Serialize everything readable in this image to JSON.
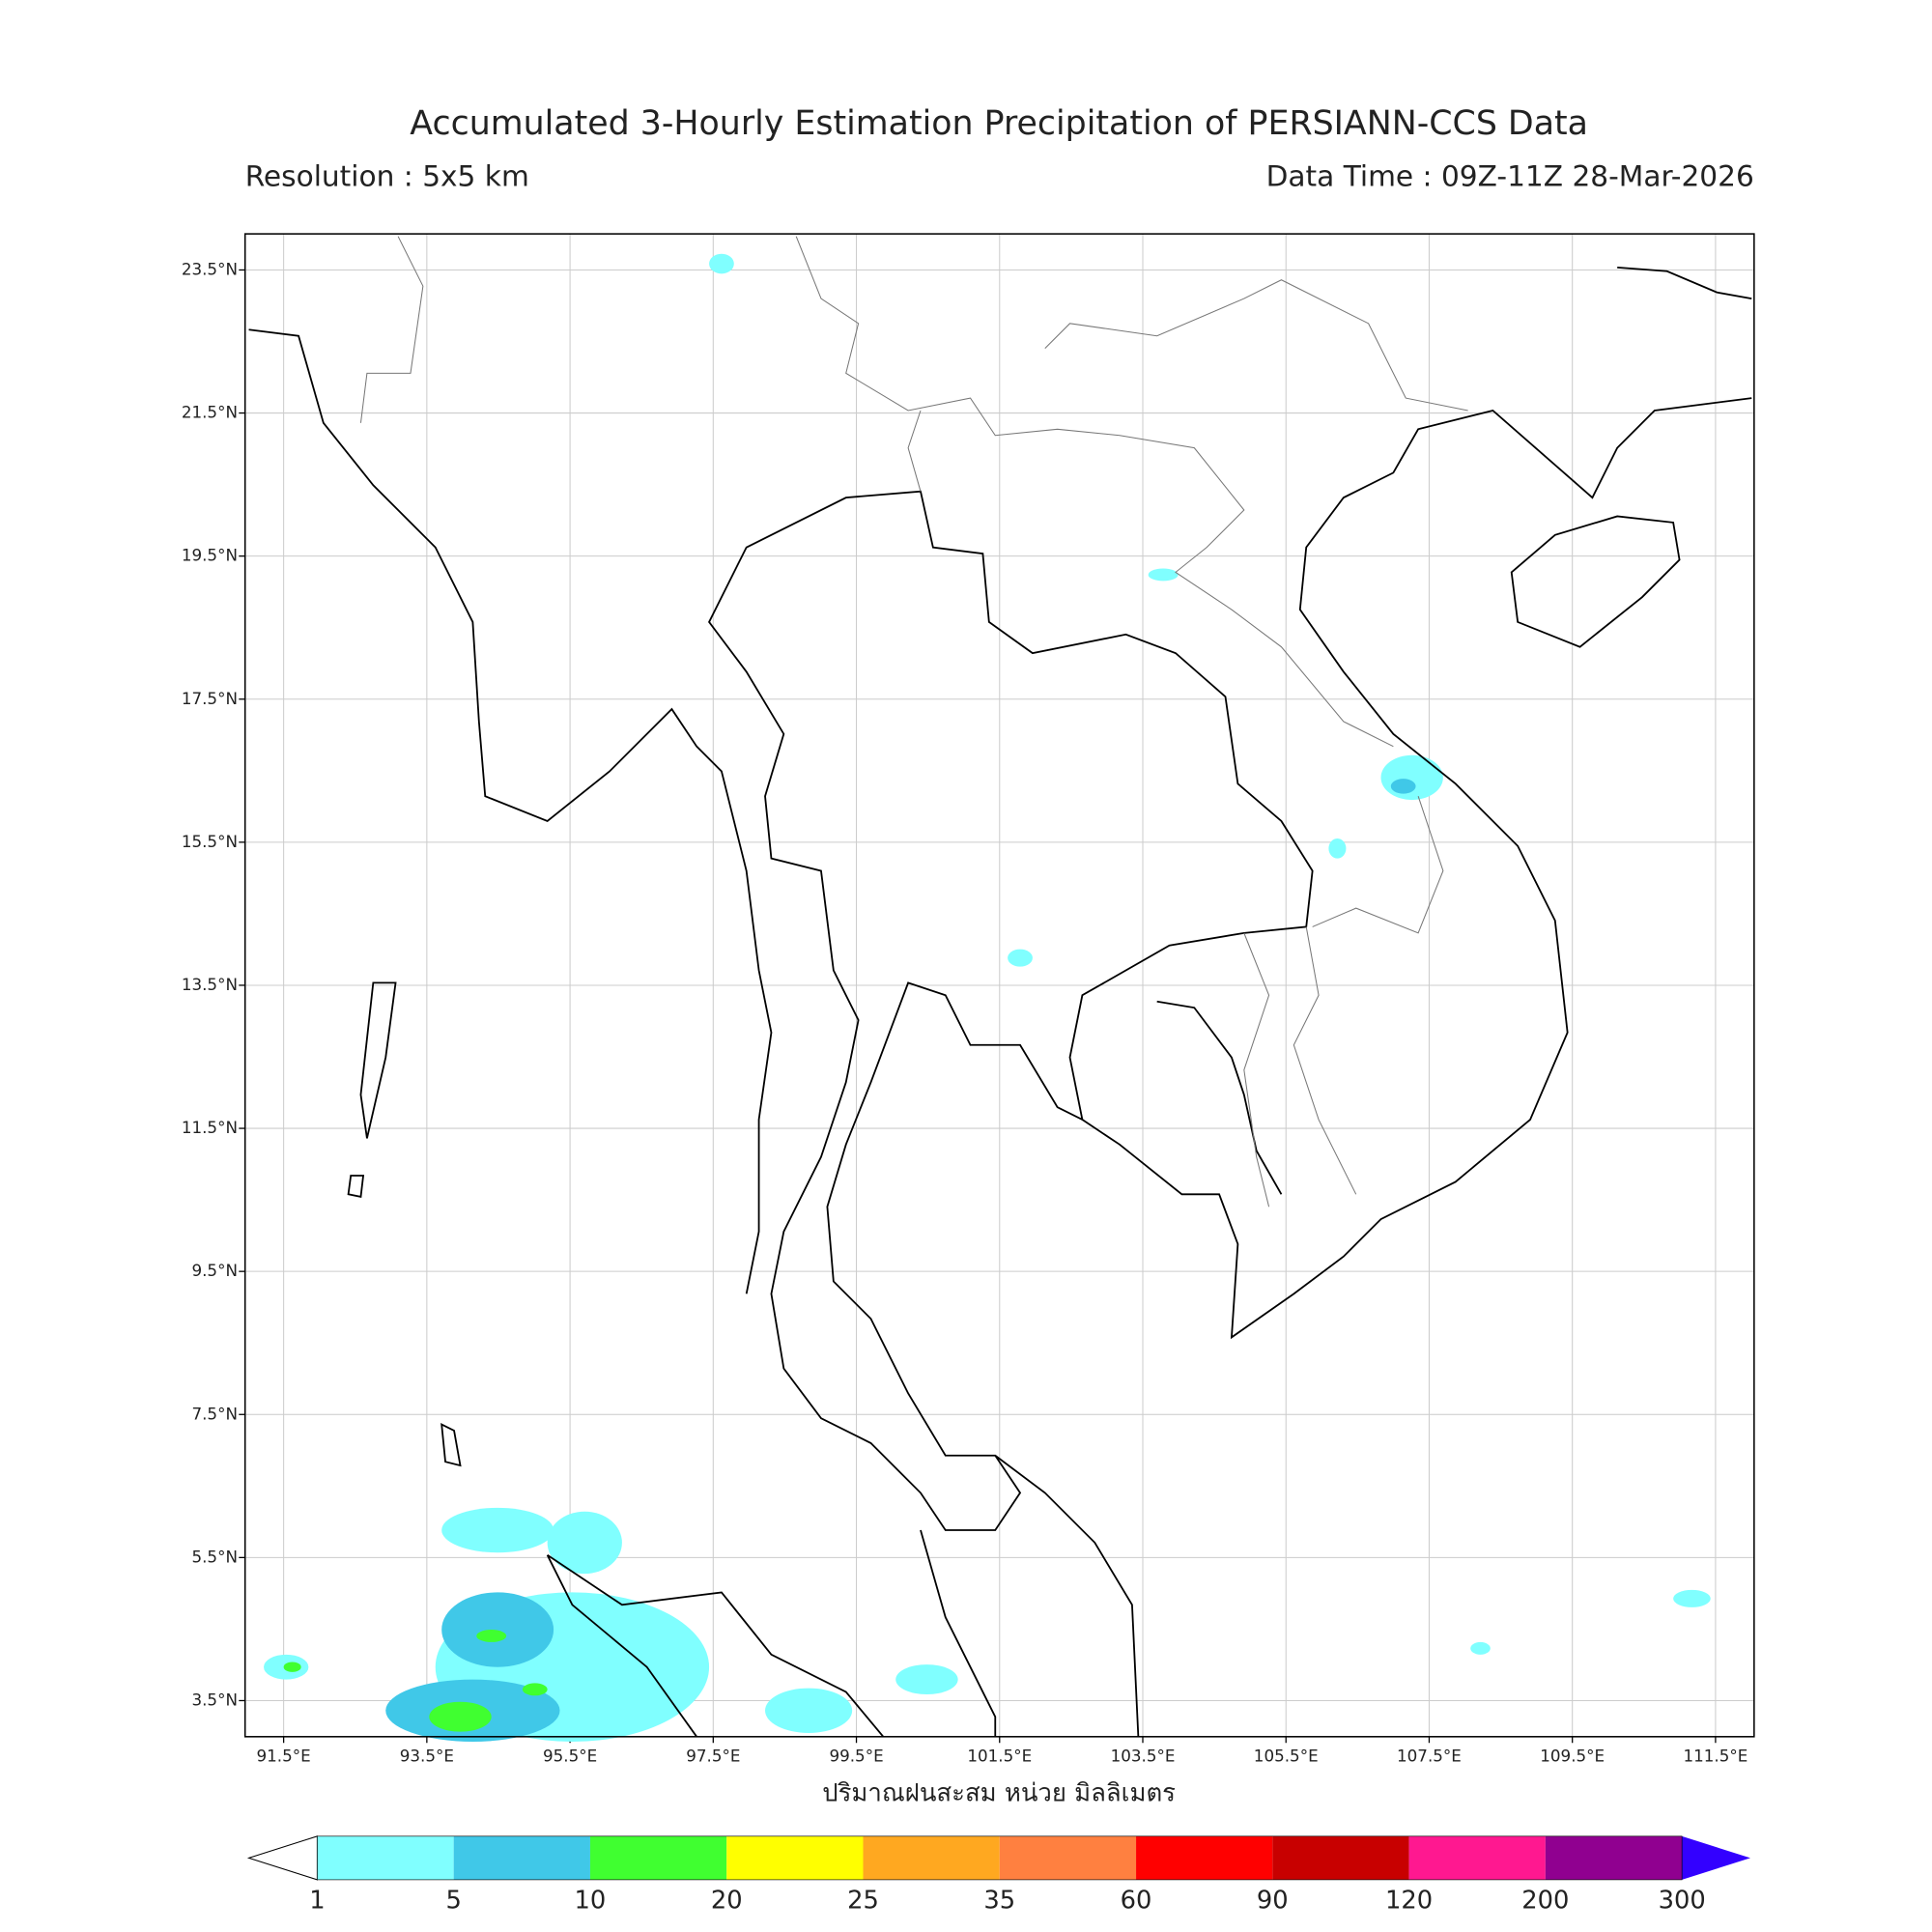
{
  "header": {
    "title": "Accumulated 3-Hourly Estimation Precipitation of PERSIANN-CCS Data",
    "resolution": "Resolution : 5x5 km",
    "data_time": "Data Time : 09Z-11Z 28-Mar-2026"
  },
  "map": {
    "lon_labels": [
      "91.5°E",
      "93.5°E",
      "95.5°E",
      "97.5°E",
      "99.5°E",
      "101.5°E",
      "103.5°E",
      "105.5°E",
      "107.5°E",
      "109.5°E",
      "111.5°E"
    ],
    "lat_labels": [
      "23.5°N",
      "21.5°N",
      "19.5°N",
      "17.5°N",
      "15.5°N",
      "13.5°N",
      "11.5°N",
      "9.5°N",
      "7.5°N",
      "5.5°N",
      "3.5°N"
    ],
    "x_label": "ปริมาณฝนสะสม หน่วย มิลลิเมตร"
  },
  "colorbar": {
    "levels": [
      1,
      5,
      10,
      20,
      25,
      35,
      60,
      90,
      120,
      200,
      300
    ],
    "colors": [
      "#80ffff",
      "#40c8e8",
      "#40ff30",
      "#ffff00",
      "#ffa820",
      "#ff8040",
      "#ff0000",
      "#c80000",
      "#ff1890",
      "#900090"
    ],
    "under_color": "#ffffff",
    "over_color": "#3300ff"
  }
}
